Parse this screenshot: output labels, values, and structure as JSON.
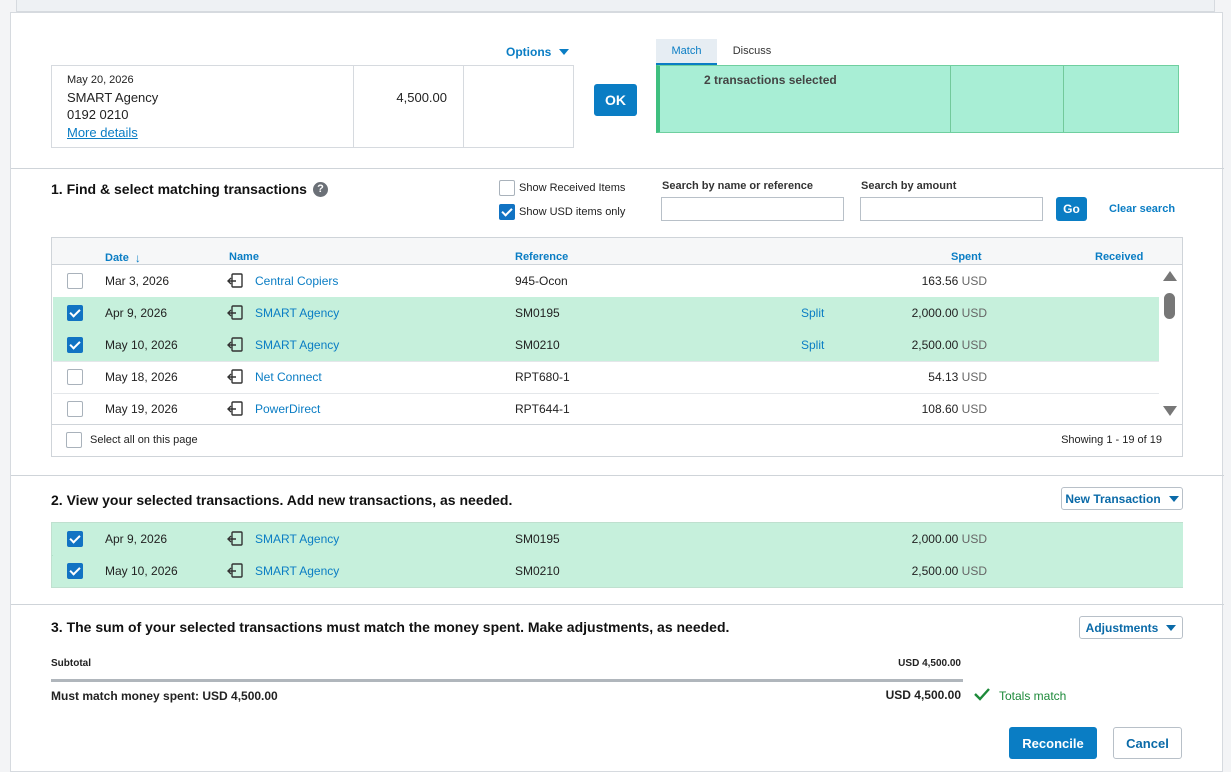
{
  "statement": {
    "date": "May 20, 2026",
    "payee": "SMART Agency",
    "reference": "0192 0210",
    "more_details": "More details",
    "amount": "4,500.00",
    "options_label": "Options"
  },
  "ok_label": "OK",
  "tabs": [
    "Match",
    "Discuss"
  ],
  "selected_summary": "2 transactions selected",
  "section1": {
    "title": "1. Find & select matching transactions",
    "help_icon": "question-circle-icon",
    "show_received": {
      "label": "Show Received Items",
      "checked": false
    },
    "show_usd": {
      "label": "Show USD items only",
      "checked": true
    },
    "search_name_label": "Search by name or reference",
    "search_amount_label": "Search by amount",
    "search_name_value": "",
    "search_amount_value": "",
    "go_label": "Go",
    "clear_label": "Clear search",
    "columns": {
      "date": "Date",
      "name": "Name",
      "reference": "Reference",
      "spent": "Spent",
      "received": "Received"
    },
    "rows": [
      {
        "date": "Mar 3, 2026",
        "name": "Central Copiers",
        "ref": "945-Ocon",
        "split": "",
        "spent": "163.56",
        "currency": "USD",
        "checked": false
      },
      {
        "date": "Apr 9, 2026",
        "name": "SMART Agency",
        "ref": "SM0195",
        "split": "Split",
        "spent": "2,000.00",
        "currency": "USD",
        "checked": true
      },
      {
        "date": "May 10, 2026",
        "name": "SMART Agency",
        "ref": "SM0210",
        "split": "Split",
        "spent": "2,500.00",
        "currency": "USD",
        "checked": true
      },
      {
        "date": "May 18, 2026",
        "name": "Net Connect",
        "ref": "RPT680-1",
        "split": "",
        "spent": "54.13",
        "currency": "USD",
        "checked": false
      },
      {
        "date": "May 19, 2026",
        "name": "PowerDirect",
        "ref": "RPT644-1",
        "split": "",
        "spent": "108.60",
        "currency": "USD",
        "checked": false
      }
    ],
    "select_all_label": "Select all on this page",
    "showing": "Showing 1 - 19 of 19"
  },
  "section2": {
    "title": "2. View your selected transactions. Add new transactions, as needed.",
    "new_transaction_label": "New Transaction",
    "rows": [
      {
        "date": "Apr 9, 2026",
        "name": "SMART Agency",
        "ref": "SM0195",
        "spent": "2,000.00",
        "currency": "USD",
        "checked": true
      },
      {
        "date": "May 10, 2026",
        "name": "SMART Agency",
        "ref": "SM0210",
        "spent": "2,500.00",
        "currency": "USD",
        "checked": true
      }
    ]
  },
  "section3": {
    "title": "3. The sum of your selected transactions must match the money spent. Make adjustments, as needed.",
    "adjustments_label": "Adjustments",
    "subtotal_label": "Subtotal",
    "subtotal_value": "USD 4,500.00",
    "must_match_label": "Must match money spent: USD 4,500.00",
    "total_value": "USD 4,500.00",
    "totals_match": "Totals match"
  },
  "reconcile_label": "Reconcile",
  "cancel_label": "Cancel",
  "colors": {
    "accent": "#0a7dc4",
    "selected_row": "#c6f0dc",
    "match_bar": "#a8eed5",
    "success": "#1d8a3a"
  }
}
